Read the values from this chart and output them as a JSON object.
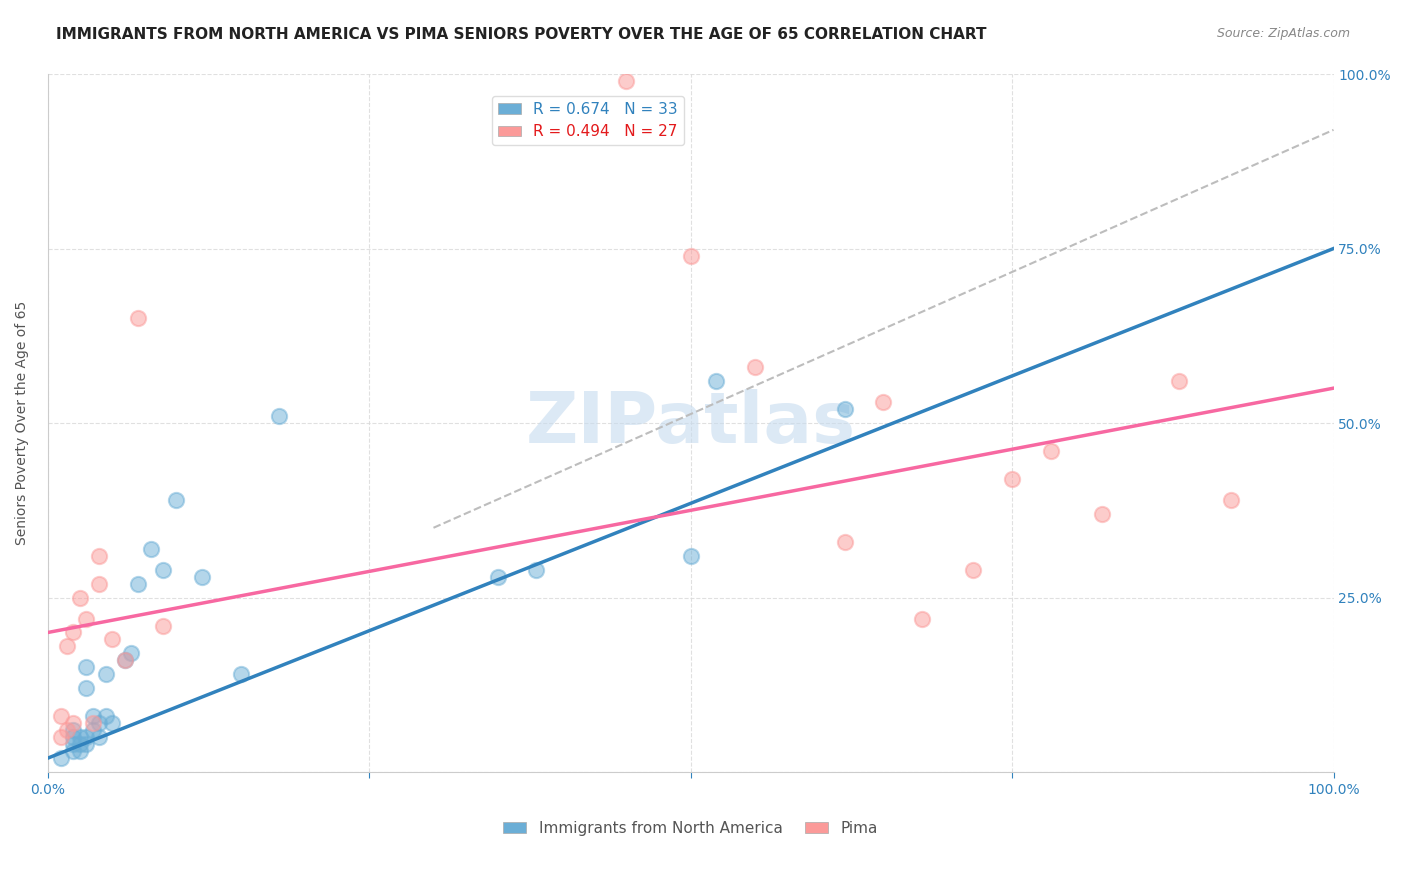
{
  "title": "IMMIGRANTS FROM NORTH AMERICA VS PIMA SENIORS POVERTY OVER THE AGE OF 65 CORRELATION CHART",
  "source": "Source: ZipAtlas.com",
  "xlabel": "",
  "ylabel": "Seniors Poverty Over the Age of 65",
  "xlim": [
    0,
    1
  ],
  "ylim": [
    0,
    1
  ],
  "xticks": [
    0.0,
    0.25,
    0.5,
    0.75,
    1.0
  ],
  "xticklabels": [
    "0.0%",
    "",
    "",
    "",
    "100.0%"
  ],
  "yticks": [
    0.0,
    0.25,
    0.5,
    0.75,
    1.0
  ],
  "yticklabels": [
    "",
    "25.0%",
    "50.0%",
    "75.0%",
    "100.0%"
  ],
  "blue_color": "#6baed6",
  "pink_color": "#fb9a99",
  "blue_line_color": "#3182bd",
  "pink_line_color": "#f768a1",
  "dashed_line_color": "#bdbdbd",
  "background_color": "#ffffff",
  "grid_color": "#d9d9d9",
  "watermark_text": "ZIPatlas",
  "watermark_color": "#c6dbef",
  "legend_R_blue": "R = 0.674",
  "legend_N_blue": "N = 33",
  "legend_R_pink": "R = 0.494",
  "legend_N_pink": "N = 27",
  "legend_label_blue": "Immigrants from North America",
  "legend_label_pink": "Pima",
  "blue_scatter_x": [
    0.01,
    0.02,
    0.02,
    0.02,
    0.02,
    0.025,
    0.025,
    0.025,
    0.03,
    0.03,
    0.03,
    0.03,
    0.035,
    0.035,
    0.04,
    0.04,
    0.045,
    0.045,
    0.05,
    0.06,
    0.065,
    0.07,
    0.08,
    0.09,
    0.1,
    0.12,
    0.15,
    0.18,
    0.35,
    0.38,
    0.5,
    0.52,
    0.62
  ],
  "blue_scatter_y": [
    0.02,
    0.03,
    0.04,
    0.05,
    0.06,
    0.03,
    0.04,
    0.05,
    0.04,
    0.05,
    0.12,
    0.15,
    0.06,
    0.08,
    0.05,
    0.07,
    0.08,
    0.14,
    0.07,
    0.16,
    0.17,
    0.27,
    0.32,
    0.29,
    0.39,
    0.28,
    0.14,
    0.51,
    0.28,
    0.29,
    0.31,
    0.56,
    0.52
  ],
  "pink_scatter_x": [
    0.01,
    0.01,
    0.015,
    0.015,
    0.02,
    0.02,
    0.025,
    0.03,
    0.035,
    0.04,
    0.04,
    0.05,
    0.06,
    0.07,
    0.09,
    0.45,
    0.5,
    0.55,
    0.62,
    0.65,
    0.68,
    0.72,
    0.75,
    0.78,
    0.82,
    0.88,
    0.92
  ],
  "pink_scatter_y": [
    0.05,
    0.08,
    0.06,
    0.18,
    0.07,
    0.2,
    0.25,
    0.22,
    0.07,
    0.27,
    0.31,
    0.19,
    0.16,
    0.65,
    0.21,
    0.99,
    0.74,
    0.58,
    0.33,
    0.53,
    0.22,
    0.29,
    0.42,
    0.46,
    0.37,
    0.56,
    0.39
  ],
  "blue_line_x": [
    0.0,
    1.0
  ],
  "blue_line_y": [
    0.02,
    0.75
  ],
  "pink_line_x": [
    0.0,
    1.0
  ],
  "pink_line_y": [
    0.2,
    0.55
  ],
  "dashed_line_x": [
    0.3,
    1.0
  ],
  "dashed_line_y": [
    0.35,
    0.92
  ],
  "title_fontsize": 11,
  "source_fontsize": 9,
  "tick_fontsize": 10,
  "ylabel_fontsize": 10
}
